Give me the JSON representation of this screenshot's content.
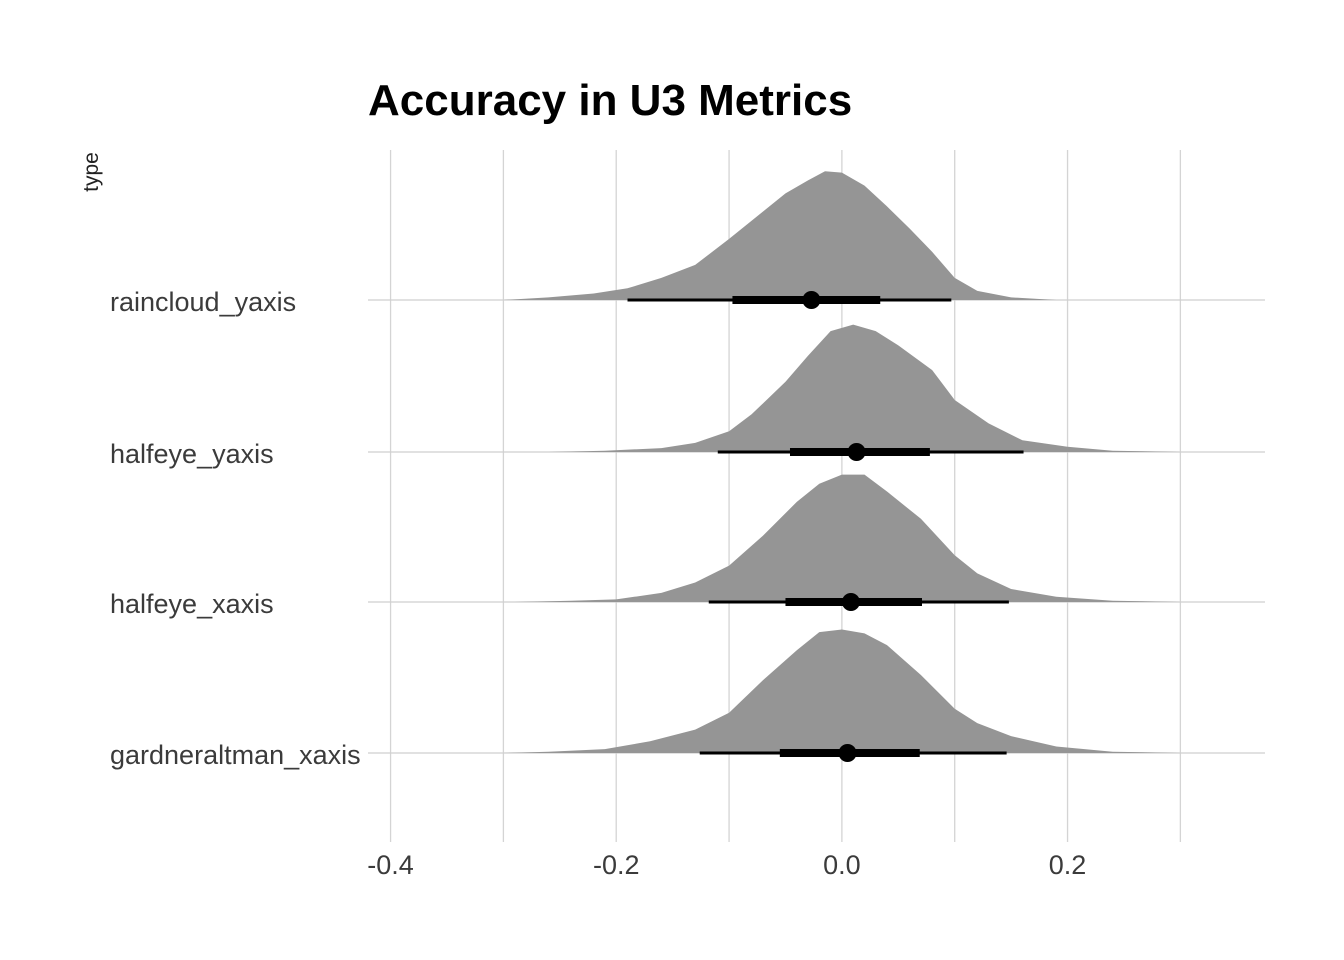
{
  "chart_data": {
    "type": "halfeye",
    "title": "Accuracy in U3 Metrics",
    "ylabel": "type",
    "xlabel": "",
    "xlim": [
      -0.42,
      0.375
    ],
    "xticks_labeled": [
      -0.4,
      -0.2,
      0.0,
      0.2
    ],
    "xtick_labels": [
      "-0.4",
      "-0.2",
      "0.0",
      "0.2"
    ],
    "xgrid": [
      -0.4,
      -0.3,
      -0.2,
      -0.1,
      0.0,
      0.1,
      0.2,
      0.3
    ],
    "grid": true,
    "legend": "none",
    "colors": {
      "density": "#959595",
      "interval": "#000000",
      "grid": "#d4d4d4"
    },
    "categories": [
      "raincloud_yaxis",
      "halfeye_yaxis",
      "halfeye_xaxis",
      "gardneraltman_xaxis"
    ],
    "series": [
      {
        "category": "raincloud_yaxis",
        "point": -0.027,
        "interval_66": [
          -0.097,
          0.034
        ],
        "interval_95": [
          -0.19,
          0.097
        ],
        "density": [
          [
            -0.3,
            0
          ],
          [
            -0.26,
            0.02
          ],
          [
            -0.22,
            0.05
          ],
          [
            -0.19,
            0.09
          ],
          [
            -0.16,
            0.17
          ],
          [
            -0.13,
            0.27
          ],
          [
            -0.1,
            0.47
          ],
          [
            -0.07,
            0.68
          ],
          [
            -0.05,
            0.82
          ],
          [
            -0.03,
            0.92
          ],
          [
            -0.015,
            0.99
          ],
          [
            0.0,
            0.98
          ],
          [
            0.02,
            0.88
          ],
          [
            0.04,
            0.72
          ],
          [
            0.06,
            0.55
          ],
          [
            0.08,
            0.37
          ],
          [
            0.1,
            0.17
          ],
          [
            0.12,
            0.07
          ],
          [
            0.15,
            0.02
          ],
          [
            0.19,
            0
          ]
        ]
      },
      {
        "category": "halfeye_yaxis",
        "point": 0.013,
        "interval_66": [
          -0.046,
          0.078
        ],
        "interval_95": [
          -0.11,
          0.161
        ],
        "density": [
          [
            -0.26,
            0
          ],
          [
            -0.21,
            0.01
          ],
          [
            -0.16,
            0.03
          ],
          [
            -0.13,
            0.07
          ],
          [
            -0.1,
            0.16
          ],
          [
            -0.08,
            0.29
          ],
          [
            -0.05,
            0.54
          ],
          [
            -0.03,
            0.74
          ],
          [
            -0.01,
            0.93
          ],
          [
            0.01,
            0.98
          ],
          [
            0.03,
            0.93
          ],
          [
            0.05,
            0.82
          ],
          [
            0.08,
            0.63
          ],
          [
            0.1,
            0.4
          ],
          [
            0.13,
            0.22
          ],
          [
            0.16,
            0.09
          ],
          [
            0.2,
            0.04
          ],
          [
            0.24,
            0.01
          ],
          [
            0.3,
            0
          ]
        ]
      },
      {
        "category": "halfeye_xaxis",
        "point": 0.008,
        "interval_66": [
          -0.05,
          0.071
        ],
        "interval_95": [
          -0.118,
          0.148
        ],
        "density": [
          [
            -0.29,
            0
          ],
          [
            -0.24,
            0.01
          ],
          [
            -0.2,
            0.02
          ],
          [
            -0.16,
            0.07
          ],
          [
            -0.13,
            0.15
          ],
          [
            -0.1,
            0.28
          ],
          [
            -0.07,
            0.51
          ],
          [
            -0.04,
            0.77
          ],
          [
            -0.02,
            0.91
          ],
          [
            0.0,
            0.98
          ],
          [
            0.02,
            0.98
          ],
          [
            0.04,
            0.85
          ],
          [
            0.07,
            0.64
          ],
          [
            0.1,
            0.36
          ],
          [
            0.12,
            0.22
          ],
          [
            0.15,
            0.1
          ],
          [
            0.19,
            0.04
          ],
          [
            0.24,
            0.01
          ],
          [
            0.3,
            0
          ]
        ]
      },
      {
        "category": "gardneraltman_xaxis",
        "point": 0.005,
        "interval_66": [
          -0.055,
          0.069
        ],
        "interval_95": [
          -0.126,
          0.146
        ],
        "density": [
          [
            -0.3,
            0
          ],
          [
            -0.26,
            0.01
          ],
          [
            -0.21,
            0.03
          ],
          [
            -0.17,
            0.09
          ],
          [
            -0.13,
            0.18
          ],
          [
            -0.1,
            0.31
          ],
          [
            -0.07,
            0.56
          ],
          [
            -0.04,
            0.79
          ],
          [
            -0.02,
            0.93
          ],
          [
            0.0,
            0.95
          ],
          [
            0.02,
            0.92
          ],
          [
            0.04,
            0.83
          ],
          [
            0.07,
            0.6
          ],
          [
            0.1,
            0.34
          ],
          [
            0.12,
            0.23
          ],
          [
            0.15,
            0.13
          ],
          [
            0.19,
            0.05
          ],
          [
            0.24,
            0.01
          ],
          [
            0.3,
            0
          ]
        ]
      }
    ]
  }
}
